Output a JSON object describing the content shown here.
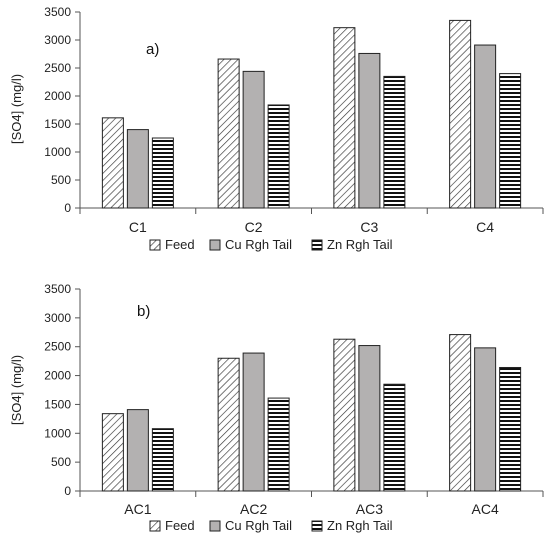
{
  "chart_data": [
    {
      "type": "bar",
      "panel_label": "a)",
      "categories": [
        "C1",
        "C2",
        "C3",
        "C4"
      ],
      "series": [
        {
          "name": "Feed",
          "values": [
            1610,
            2660,
            3220,
            3350
          ]
        },
        {
          "name": "Cu Rgh Tail",
          "values": [
            1400,
            2440,
            2760,
            2910
          ]
        },
        {
          "name": "Zn Rgh Tail",
          "values": [
            1250,
            1840,
            2350,
            2400
          ]
        }
      ],
      "ylabel": "[SO4] (mg/l)",
      "ylim": [
        0,
        3500
      ],
      "yticks": [
        0,
        500,
        1000,
        1500,
        2000,
        2500,
        3000,
        3500
      ],
      "grid": false,
      "legend_position": "bottom"
    },
    {
      "type": "bar",
      "panel_label": "b)",
      "categories": [
        "AC1",
        "AC2",
        "AC3",
        "AC4"
      ],
      "series": [
        {
          "name": "Feed",
          "values": [
            1340,
            2300,
            2630,
            2710
          ]
        },
        {
          "name": "Cu Rgh Tail",
          "values": [
            1410,
            2390,
            2520,
            2480
          ]
        },
        {
          "name": "Zn Rgh Tail",
          "values": [
            1080,
            1610,
            1850,
            2140
          ]
        }
      ],
      "ylabel": "[SO4] (mg/l)",
      "ylim": [
        0,
        3500
      ],
      "yticks": [
        0,
        500,
        1000,
        1500,
        2000,
        2500,
        3000,
        3500
      ],
      "grid": false,
      "legend_position": "bottom"
    }
  ],
  "series_styles": [
    {
      "name": "Feed",
      "fill": "hatch-diagonal",
      "color": "#ffffff"
    },
    {
      "name": "Cu Rgh Tail",
      "fill": "solid",
      "color": "#b3b1b1"
    },
    {
      "name": "Zn Rgh Tail",
      "fill": "hatch-horizontal",
      "color": "#ffffff"
    }
  ]
}
